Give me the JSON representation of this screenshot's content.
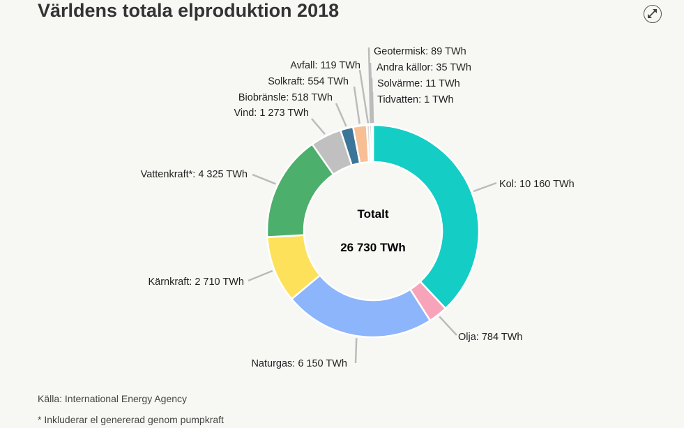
{
  "title": "Världens totala elproduktion 2018",
  "expand_icon": "expand-arrows-icon",
  "chart_data": {
    "type": "pie",
    "subtype": "donut",
    "title": "Världens totala elproduktion 2018",
    "unit": "TWh",
    "center_label": "Totalt",
    "center_value": "26 730 TWh",
    "slices": [
      {
        "name": "Kol",
        "value": 10160,
        "label": "Kol: 10 160 TWh",
        "color": "#14cdc5"
      },
      {
        "name": "Olja",
        "value": 784,
        "label": "Olja: 784 TWh",
        "color": "#f7a4ba"
      },
      {
        "name": "Naturgas",
        "value": 6150,
        "label": "Naturgas: 6 150 TWh",
        "color": "#8cb5fb"
      },
      {
        "name": "Kärnkraft",
        "value": 2710,
        "label": "Kärnkraft: 2 710 TWh",
        "color": "#fde15b"
      },
      {
        "name": "Vattenkraft*",
        "value": 4325,
        "label": "Vattenkraft*: 4 325 TWh",
        "color": "#4caf6b"
      },
      {
        "name": "Vind",
        "value": 1273,
        "label": "Vind: 1 273 TWh",
        "color": "#c0c0c0"
      },
      {
        "name": "Biobränsle",
        "value": 518,
        "label": "Biobränsle: 518 TWh",
        "color": "#3b7597"
      },
      {
        "name": "Solkraft",
        "value": 554,
        "label": "Solkraft: 554 TWh",
        "color": "#f8be94"
      },
      {
        "name": "Avfall",
        "value": 119,
        "label": "Avfall: 119 TWh",
        "color": "#d9d9d9"
      },
      {
        "name": "Geotermisk",
        "value": 89,
        "label": "Geotermisk: 89 TWh",
        "color": "#b5b5b5"
      },
      {
        "name": "Andra källor",
        "value": 35,
        "label": "Andra källor: 35 TWh",
        "color": "#c8c8c8"
      },
      {
        "name": "Solvärme",
        "value": 11,
        "label": "Solvärme: 11 TWh",
        "color": "#bbbbbb"
      },
      {
        "name": "Tidvatten",
        "value": 1,
        "label": "Tidvatten: 1 TWh",
        "color": "#aaaaaa"
      }
    ]
  },
  "source": "Källa: International Energy Agency",
  "footnote": "* Inkluderar el genererad genom pumpkraft"
}
